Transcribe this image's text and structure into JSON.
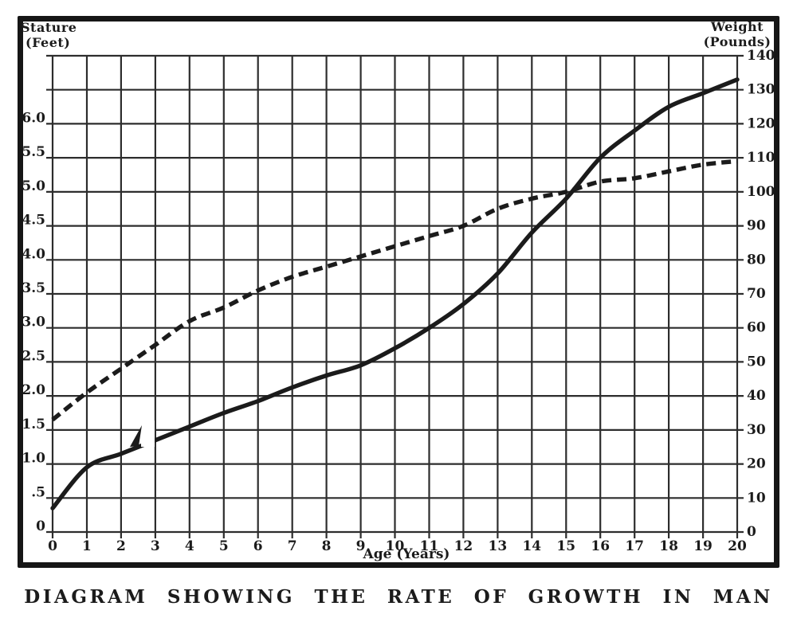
{
  "page": {
    "caption": "DIAGRAM SHOWING THE RATE OF GROWTH IN MAN"
  },
  "chart_data": {
    "type": "line",
    "title": "DIAGRAM SHOWING THE RATE OF GROWTH IN MAN",
    "xlabel": "Age (Years)",
    "x": [
      0,
      1,
      2,
      3,
      4,
      5,
      6,
      7,
      8,
      9,
      10,
      11,
      12,
      13,
      14,
      15,
      16,
      17,
      18,
      19,
      20
    ],
    "x_tick_labels": [
      "0",
      "1",
      "2",
      "3",
      "4",
      "5",
      "6",
      "7",
      "8",
      "9",
      "10",
      "11",
      "12",
      "13",
      "14",
      "15",
      "16",
      "17",
      "18",
      "19",
      "20"
    ],
    "left_axis": {
      "title_line1": "Stature",
      "title_line2": "(Feet)",
      "units": "feet",
      "ticks": [
        "0",
        ".5",
        "1.0",
        "1.5",
        "2.0",
        "2.5",
        "3.0",
        "3.5",
        "4.0",
        "4.5",
        "5.0",
        "5.5",
        "6.0"
      ],
      "range": [
        0,
        7
      ]
    },
    "right_axis": {
      "title_line1": "Weight",
      "title_line2": "(Pounds)",
      "units": "pounds",
      "ticks": [
        "0",
        "10",
        "20",
        "30",
        "40",
        "50",
        "60",
        "70",
        "80",
        "90",
        "100",
        "110",
        "120",
        "130",
        "140."
      ],
      "range": [
        0,
        140
      ]
    },
    "series": [
      {
        "name": "Weight",
        "axis": "right",
        "line_style": "solid",
        "values": [
          7,
          19,
          23,
          27,
          31,
          35,
          38.5,
          42.5,
          46,
          49,
          54,
          60,
          67,
          76,
          88,
          98,
          110,
          118,
          125,
          129,
          133
        ]
      },
      {
        "name": "Stature",
        "axis": "left",
        "line_style": "dashed",
        "values": [
          1.65,
          2.05,
          2.4,
          2.75,
          3.1,
          3.3,
          3.55,
          3.75,
          3.9,
          4.05,
          4.2,
          4.35,
          4.5,
          4.75,
          4.9,
          5.0,
          5.15,
          5.2,
          5.3,
          5.4,
          5.45
        ]
      }
    ],
    "grid": true,
    "grid_note": "one horizontal division = 0.5 ft = 10 lb; one vertical division = 1 year",
    "legend": "none",
    "colors": {
      "ink": "#1b1b1b",
      "paper": "#ffffff"
    }
  }
}
